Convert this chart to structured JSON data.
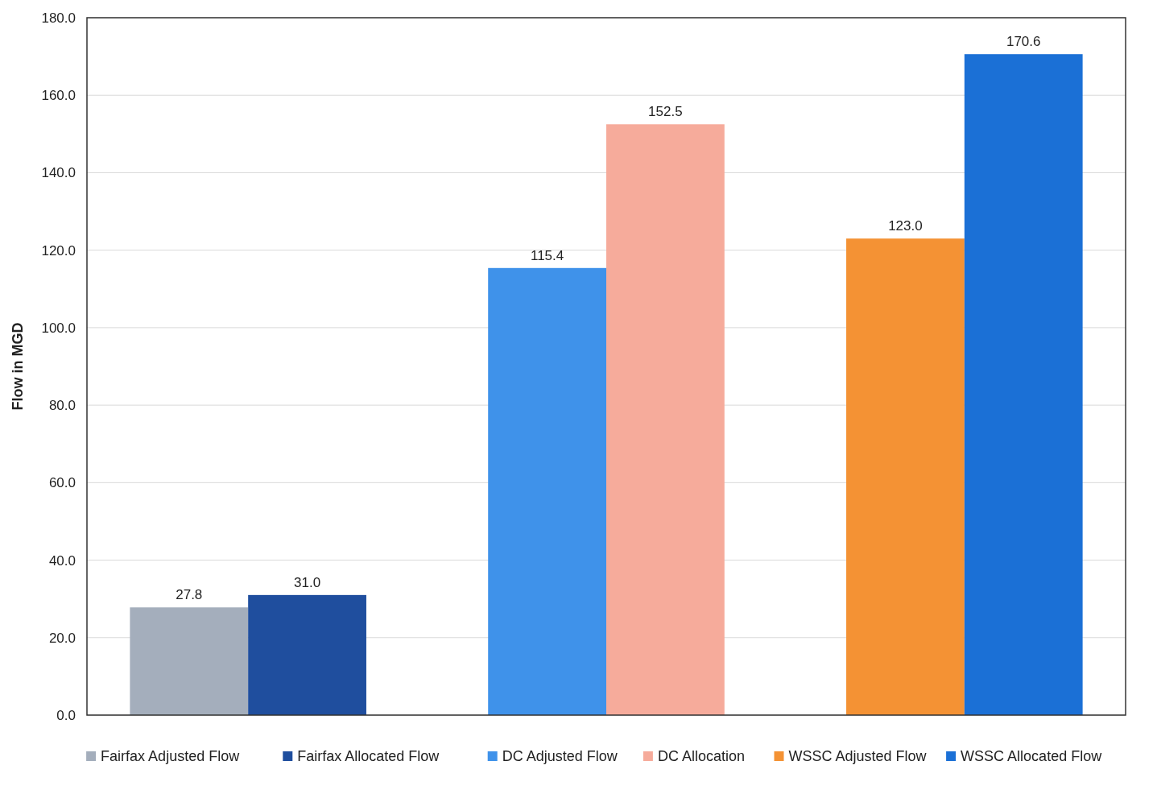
{
  "chart_data": {
    "type": "bar",
    "ylabel": "Flow in MGD",
    "categories": [
      null,
      null,
      null
    ],
    "series": [
      {
        "name": "Fairfax Adjusted Flow",
        "color": "#a4aebc",
        "values": [
          27.8,
          null,
          null
        ],
        "value_labels": [
          "27.8",
          null,
          null
        ]
      },
      {
        "name": "Fairfax Allocated Flow",
        "color": "#1f4e9e",
        "values": [
          31.0,
          null,
          null
        ],
        "value_labels": [
          "31.0",
          null,
          null
        ]
      },
      {
        "name": "DC Adjusted Flow",
        "color": "#3f92ea",
        "values": [
          null,
          115.4,
          null
        ],
        "value_labels": [
          null,
          "115.4",
          null
        ]
      },
      {
        "name": "DC Allocation",
        "color": "#f6ab9b",
        "values": [
          null,
          152.5,
          null
        ],
        "value_labels": [
          null,
          "152.5",
          null
        ]
      },
      {
        "name": "WSSC Adjusted Flow",
        "color": "#f49234",
        "values": [
          null,
          null,
          123.0
        ],
        "value_labels": [
          null,
          null,
          "123.0"
        ]
      },
      {
        "name": "WSSC Allocated Flow",
        "color": "#1b70d6",
        "values": [
          null,
          null,
          170.6
        ],
        "value_labels": [
          null,
          null,
          "170.6"
        ]
      }
    ],
    "ylim": [
      0,
      180
    ],
    "yticks": [
      {
        "value": 0,
        "label": "0.0"
      },
      {
        "value": 20,
        "label": "20.0"
      },
      {
        "value": 40,
        "label": "40.0"
      },
      {
        "value": 60,
        "label": "60.0"
      },
      {
        "value": 80,
        "label": "80.0"
      },
      {
        "value": 100,
        "label": "100.0"
      },
      {
        "value": 120,
        "label": "120.0"
      },
      {
        "value": 140,
        "label": "140.0"
      },
      {
        "value": 160,
        "label": "160.0"
      },
      {
        "value": 180,
        "label": "180.0"
      }
    ],
    "grid": "y",
    "legend": "bottom"
  }
}
